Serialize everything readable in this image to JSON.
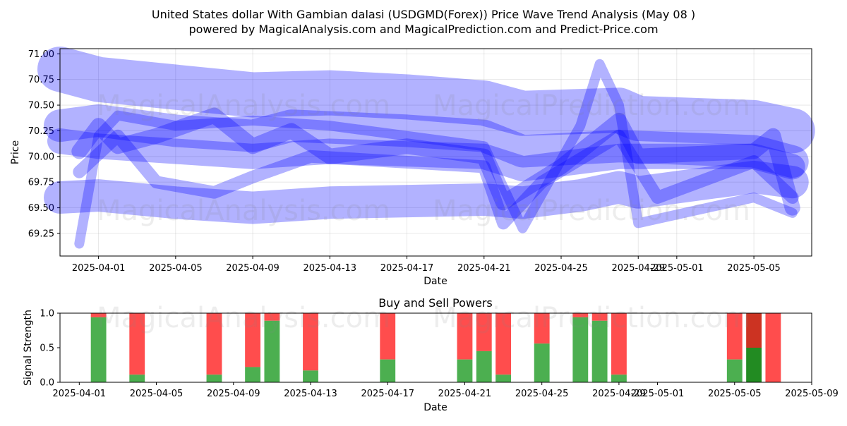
{
  "figure": {
    "title_line1": "United States dollar With Gambian dalasi (USDGMD(Forex)) Price Wave Trend Analysis (May 08 )",
    "title_line2": "powered by MagicalAnalysis.com and MagicalPrediction.com and Predict-Price.com",
    "watermarks": [
      "MagicalAnalysis.com",
      "MagicalPrediction.com"
    ]
  },
  "colors": {
    "wave": "#0000ff",
    "buy": "#4caf50",
    "sell": "#ff4d4d",
    "buy_strong": "#228b22",
    "sell_strong": "#cc3322"
  },
  "chart_data": [
    {
      "type": "area",
      "title": "",
      "xlabel": "Date",
      "ylabel": "Price",
      "ylim": [
        69.03,
        71.05
      ],
      "xlim": [
        "2025-03-30",
        "2025-05-08"
      ],
      "x_ticks": [
        "2025-04-01",
        "2025-04-05",
        "2025-04-09",
        "2025-04-13",
        "2025-04-17",
        "2025-04-21",
        "2025-04-25",
        "2025-04-29",
        "2025-05-01",
        "2025-05-05"
      ],
      "y_ticks": [
        69.25,
        69.5,
        69.75,
        70.0,
        70.25,
        70.5,
        70.75,
        71.0
      ],
      "grid": true,
      "series": [
        {
          "points": [
            [
              "2025-03-30",
              70.85
            ],
            [
              "2025-04-01",
              70.75
            ],
            [
              "2025-04-09",
              70.6
            ],
            [
              "2025-04-13",
              70.62
            ],
            [
              "2025-04-17",
              70.58
            ],
            [
              "2025-04-21",
              70.52
            ],
            [
              "2025-04-23",
              70.42
            ],
            [
              "2025-04-28",
              70.45
            ],
            [
              "2025-04-29",
              70.37
            ],
            [
              "2025-05-05",
              70.33
            ],
            [
              "2025-05-07",
              70.25
            ]
          ],
          "width": 64
        },
        {
          "points": [
            [
              "2025-03-30",
              70.3
            ],
            [
              "2025-04-01",
              70.35
            ],
            [
              "2025-04-05",
              70.25
            ],
            [
              "2025-04-09",
              70.2
            ],
            [
              "2025-04-11",
              70.3
            ],
            [
              "2025-04-17",
              70.25
            ],
            [
              "2025-04-21",
              70.2
            ],
            [
              "2025-04-23",
              70.05
            ],
            [
              "2025-04-28",
              70.1
            ],
            [
              "2025-05-05",
              70.05
            ],
            [
              "2025-05-07",
              69.95
            ]
          ],
          "width": 46
        },
        {
          "points": [
            [
              "2025-03-30",
              70.15
            ],
            [
              "2025-04-01",
              70.1
            ],
            [
              "2025-04-05",
              70.05
            ],
            [
              "2025-04-09",
              70.0
            ],
            [
              "2025-04-13",
              70.05
            ],
            [
              "2025-04-21",
              70.0
            ],
            [
              "2025-04-23",
              69.88
            ],
            [
              "2025-04-28",
              70.0
            ],
            [
              "2025-05-05",
              70.0
            ],
            [
              "2025-05-07",
              69.9
            ]
          ],
          "width": 36
        },
        {
          "points": [
            [
              "2025-03-30",
              69.6
            ],
            [
              "2025-04-01",
              69.62
            ],
            [
              "2025-04-05",
              69.55
            ],
            [
              "2025-04-09",
              69.5
            ],
            [
              "2025-04-13",
              69.55
            ],
            [
              "2025-04-21",
              69.58
            ],
            [
              "2025-04-23",
              69.55
            ],
            [
              "2025-04-26",
              69.62
            ],
            [
              "2025-04-28",
              69.7
            ],
            [
              "2025-04-29",
              69.65
            ],
            [
              "2025-05-05",
              69.8
            ],
            [
              "2025-05-07",
              69.75
            ]
          ],
          "width": 46
        },
        {
          "points": [
            [
              "2025-03-31",
              70.05
            ],
            [
              "2025-04-01",
              70.3
            ],
            [
              "2025-04-02",
              70.1
            ],
            [
              "2025-04-04",
              70.2
            ],
            [
              "2025-04-07",
              70.4
            ],
            [
              "2025-04-09",
              70.1
            ],
            [
              "2025-04-11",
              70.25
            ],
            [
              "2025-04-13",
              70.0
            ],
            [
              "2025-04-17",
              70.1
            ],
            [
              "2025-04-21",
              70.0
            ],
            [
              "2025-04-22",
              69.55
            ],
            [
              "2025-04-25",
              69.9
            ],
            [
              "2025-04-28",
              70.35
            ],
            [
              "2025-04-29",
              70.0
            ],
            [
              "2025-05-05",
              70.05
            ],
            [
              "2025-05-06",
              70.2
            ],
            [
              "2025-05-07",
              69.5
            ]
          ],
          "width": 22
        },
        {
          "points": [
            [
              "2025-03-31",
              69.85
            ],
            [
              "2025-04-02",
              70.2
            ],
            [
              "2025-04-04",
              69.75
            ],
            [
              "2025-04-07",
              69.65
            ],
            [
              "2025-04-09",
              69.8
            ],
            [
              "2025-04-12",
              70.0
            ],
            [
              "2025-04-21",
              69.9
            ],
            [
              "2025-04-22",
              69.35
            ],
            [
              "2025-04-24",
              69.75
            ],
            [
              "2025-04-28",
              70.2
            ],
            [
              "2025-04-30",
              69.6
            ],
            [
              "2025-05-05",
              69.95
            ],
            [
              "2025-05-07",
              69.6
            ]
          ],
          "width": 18
        },
        {
          "points": [
            [
              "2025-03-31",
              69.15
            ],
            [
              "2025-04-01",
              70.2
            ],
            [
              "2025-04-02",
              70.4
            ],
            [
              "2025-04-05",
              70.3
            ],
            [
              "2025-04-09",
              70.35
            ],
            [
              "2025-04-13",
              70.3
            ],
            [
              "2025-04-21",
              70.1
            ],
            [
              "2025-04-23",
              69.3
            ],
            [
              "2025-04-26",
              70.3
            ],
            [
              "2025-04-27",
              70.9
            ],
            [
              "2025-04-28",
              70.5
            ],
            [
              "2025-04-29",
              69.35
            ],
            [
              "2025-05-05",
              69.6
            ],
            [
              "2025-05-07",
              69.45
            ]
          ],
          "width": 14
        }
      ]
    },
    {
      "type": "bar",
      "title": "Buy and Sell Powers",
      "xlabel": "Date",
      "ylabel": "Signal Strength",
      "ylim": [
        0,
        1
      ],
      "xlim": [
        "2025-03-31",
        "2025-05-09"
      ],
      "x_ticks": [
        "2025-04-01",
        "2025-04-05",
        "2025-04-09",
        "2025-04-13",
        "2025-04-17",
        "2025-04-21",
        "2025-04-25",
        "2025-04-29",
        "2025-05-01",
        "2025-05-05",
        "2025-05-09"
      ],
      "y_ticks": [
        0.0,
        0.5,
        1.0
      ],
      "legend": "none",
      "bars": [
        {
          "date": "2025-04-02",
          "buy": 0.94
        },
        {
          "date": "2025-04-04",
          "buy": 0.11
        },
        {
          "date": "2025-04-08",
          "buy": 0.11
        },
        {
          "date": "2025-04-10",
          "buy": 0.22
        },
        {
          "date": "2025-04-11",
          "buy": 0.89
        },
        {
          "date": "2025-04-13",
          "buy": 0.17
        },
        {
          "date": "2025-04-17",
          "buy": 0.33
        },
        {
          "date": "2025-04-21",
          "buy": 0.33
        },
        {
          "date": "2025-04-22",
          "buy": 0.45
        },
        {
          "date": "2025-04-23",
          "buy": 0.11
        },
        {
          "date": "2025-04-25",
          "buy": 0.56
        },
        {
          "date": "2025-04-27",
          "buy": 0.94
        },
        {
          "date": "2025-04-28",
          "buy": 0.89
        },
        {
          "date": "2025-04-29",
          "buy": 0.11
        },
        {
          "date": "2025-05-05",
          "buy": 0.33
        },
        {
          "date": "2025-05-06",
          "buy": 0.5,
          "strong": true
        },
        {
          "date": "2025-05-07",
          "buy": 0.0
        }
      ]
    }
  ]
}
